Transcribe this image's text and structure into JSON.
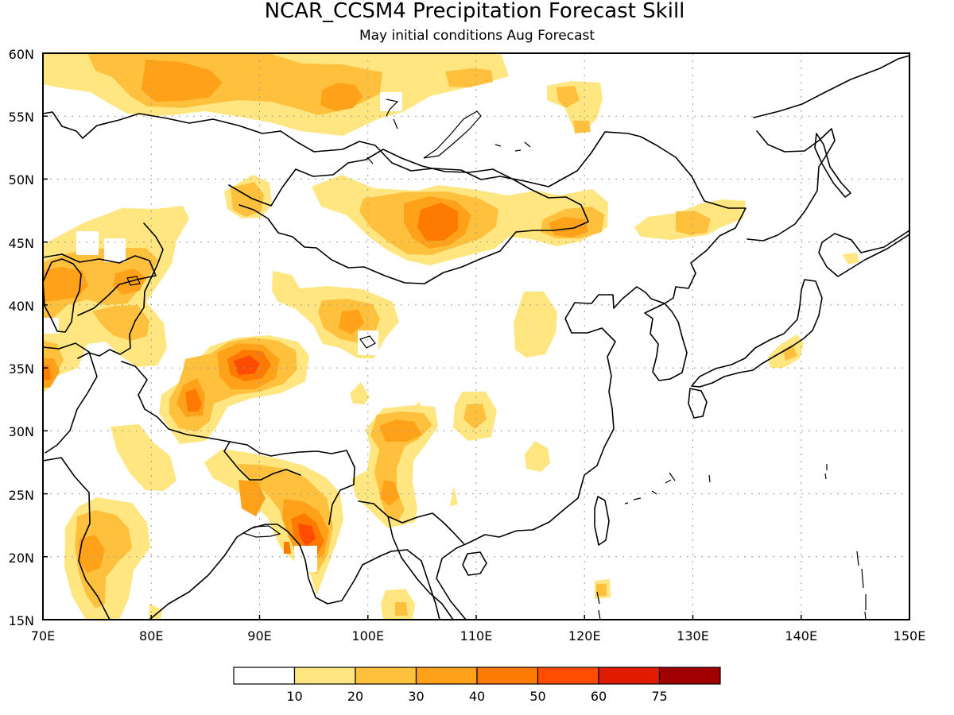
{
  "title": "NCAR_CCSM4 Precipitation Forecast Skill",
  "subtitle": "May initial conditions  Aug Forecast",
  "map": {
    "lon_range": [
      70,
      150
    ],
    "lat_range": [
      15,
      60
    ],
    "lon_labels": [
      "70E",
      "80E",
      "90E",
      "100E",
      "110E",
      "120E",
      "130E",
      "140E",
      "150E"
    ],
    "lat_labels": [
      "15N",
      "20N",
      "25N",
      "30N",
      "35N",
      "40N",
      "45N",
      "50N",
      "55N",
      "60N"
    ],
    "gridlines": "dotted"
  },
  "legend": {
    "labels": [
      "10",
      "20",
      "30",
      "40",
      "50",
      "60",
      "75"
    ],
    "colors": [
      "#ffffff",
      "#ffe680",
      "#ffc13d",
      "#ffa21a",
      "#ff7a00",
      "#ff4c00",
      "#e01b00",
      "#a00000"
    ]
  },
  "palette": {
    "level_1": "#ffe680",
    "level_2": "#ffc13d",
    "level_3": "#ffa21a",
    "level_4": "#ff7a00",
    "level_5": "#ff4c00"
  }
}
